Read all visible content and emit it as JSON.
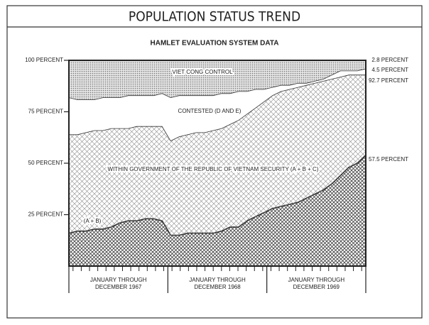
{
  "chart_data": {
    "type": "stacked_area",
    "title": "POPULATION STATUS TREND",
    "subtitle": "HAMLET EVALUATION SYSTEM DATA",
    "categories": [
      null,
      null,
      null,
      null,
      null,
      null,
      null,
      null,
      null,
      null,
      null,
      null,
      null,
      null,
      null,
      null,
      null,
      null,
      null,
      null,
      null,
      null,
      null,
      null,
      null,
      null,
      null,
      null,
      null,
      null,
      null,
      null,
      null,
      null,
      null,
      null
    ],
    "groups": [
      [
        "JANUARY THROUGH",
        "DECEMBER 1967"
      ],
      [
        "JANUARY THROUGH",
        "DECEMBER 1968"
      ],
      [
        "JANUARY THROUGH",
        "DECEMBER 1969"
      ]
    ],
    "series": [
      {
        "name": "(A + B)",
        "color": "#444444",
        "values": [
          16,
          17,
          17,
          18,
          18,
          19,
          21,
          22,
          22,
          23,
          23,
          22,
          15,
          15,
          16,
          16,
          16,
          16,
          17,
          19,
          19,
          22,
          24,
          26,
          28,
          29,
          30,
          31,
          33,
          35,
          37,
          40,
          44,
          48,
          50,
          54
        ]
      },
      {
        "name": "WITHIN GOVERNMENT OF THE REPUBLIC OF VIETNAM SECURITY (A + B + C)",
        "color": "#888888",
        "values": [
          48,
          47,
          48,
          48,
          48,
          48,
          46,
          45,
          46,
          45,
          45,
          46,
          46,
          48,
          48,
          49,
          49,
          50,
          50,
          50,
          52,
          52,
          53,
          54,
          55,
          56,
          56,
          56,
          55,
          54,
          53,
          51,
          48,
          45,
          43,
          39
        ]
      },
      {
        "name": "CONTESTED (D AND E)",
        "color": "#ffffff",
        "values": [
          18,
          17,
          16,
          15,
          16,
          15,
          15,
          16,
          15,
          15,
          15,
          16,
          21,
          20,
          19,
          18,
          18,
          17,
          17,
          15,
          14,
          11,
          9,
          6,
          4,
          3,
          2,
          2,
          1,
          1,
          1,
          2,
          3,
          2,
          2,
          3
        ]
      },
      {
        "name": "VIET CONG CONTROL",
        "color": "#777777",
        "values": [
          18,
          19,
          19,
          19,
          18,
          18,
          18,
          17,
          17,
          17,
          17,
          16,
          18,
          17,
          17,
          17,
          17,
          17,
          16,
          16,
          15,
          15,
          14,
          14,
          13,
          12,
          12,
          11,
          11,
          10,
          9,
          7,
          5,
          5,
          5,
          4
        ]
      }
    ],
    "annotations": [
      "2.8 PERCENT",
      "4.5 PERCENT",
      "92.7 PERCENT",
      "57.5 PERCENT"
    ],
    "ylim": [
      0,
      100
    ],
    "yticks": [
      {
        "value": 25,
        "label": "25 PERCENT"
      },
      {
        "value": 50,
        "label": "50 PERCENT"
      },
      {
        "value": 75,
        "label": "75 PERCENT"
      },
      {
        "value": 100,
        "label": "100 PERCENT"
      }
    ]
  }
}
